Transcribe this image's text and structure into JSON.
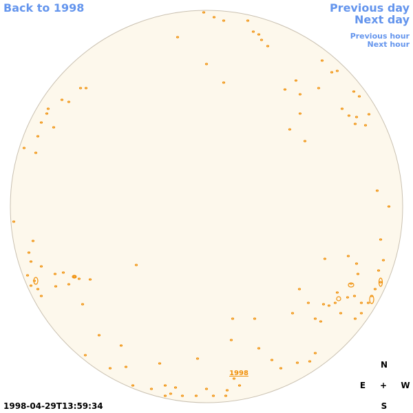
{
  "navigation": {
    "back": "Back to 1998",
    "previous_day": "Previous day",
    "next_day": "Next day",
    "previous_hour": "Previous hour",
    "next_hour": "Next hour"
  },
  "image": {
    "year_link": "1998",
    "timestamp": "1998-04-29T13:59:34"
  },
  "compass": {
    "north": "N",
    "east": "E",
    "center": "+",
    "west": "W",
    "south": "S"
  }
}
